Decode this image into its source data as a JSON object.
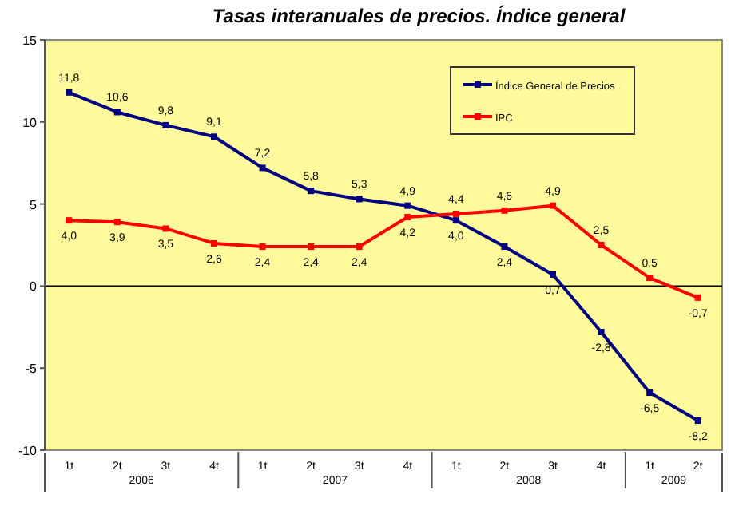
{
  "chart_data": {
    "type": "line",
    "title": "Tasas interanuales de precios. Índice general",
    "categories": [
      "1t",
      "2t",
      "3t",
      "4t",
      "1t",
      "2t",
      "3t",
      "4t",
      "1t",
      "2t",
      "3t",
      "4t",
      "1t",
      "2t"
    ],
    "annotations": [
      "2006",
      "2007",
      "2008",
      "2009"
    ],
    "series": [
      {
        "name": "Índice General de Precios",
        "color": "#000080",
        "values": [
          11.8,
          10.6,
          9.8,
          9.1,
          7.2,
          5.8,
          5.3,
          4.9,
          4.0,
          2.4,
          0.7,
          -2.8,
          -6.5,
          -8.2
        ],
        "value_labels": [
          "11,8",
          "10,6",
          "9,8",
          "9,1",
          "7,2",
          "5,8",
          "5,3",
          "4,9",
          "4,0",
          "2,4",
          "0,7",
          "-2,8",
          "-6,5",
          "-8,2"
        ]
      },
      {
        "name": "IPC",
        "color": "#ff0000",
        "values": [
          4.0,
          3.9,
          3.5,
          2.6,
          2.4,
          2.4,
          2.4,
          4.2,
          4.4,
          4.6,
          4.9,
          2.5,
          0.5,
          -0.7
        ],
        "value_labels": [
          "4,0",
          "3,9",
          "3,5",
          "2,6",
          "2,4",
          "2,4",
          "2,4",
          "4,2",
          "4,4",
          "4,6",
          "4,9",
          "2,5",
          "0,5",
          "-0,7"
        ]
      }
    ],
    "ylim": [
      -10,
      15
    ],
    "yticks": [
      -10,
      -5,
      0,
      5,
      10,
      15
    ],
    "ref_lines": [
      {
        "axis": "y",
        "value": 0,
        "color": "#000000"
      }
    ],
    "legend": "top right",
    "marker": "square",
    "line_style": "solid"
  }
}
